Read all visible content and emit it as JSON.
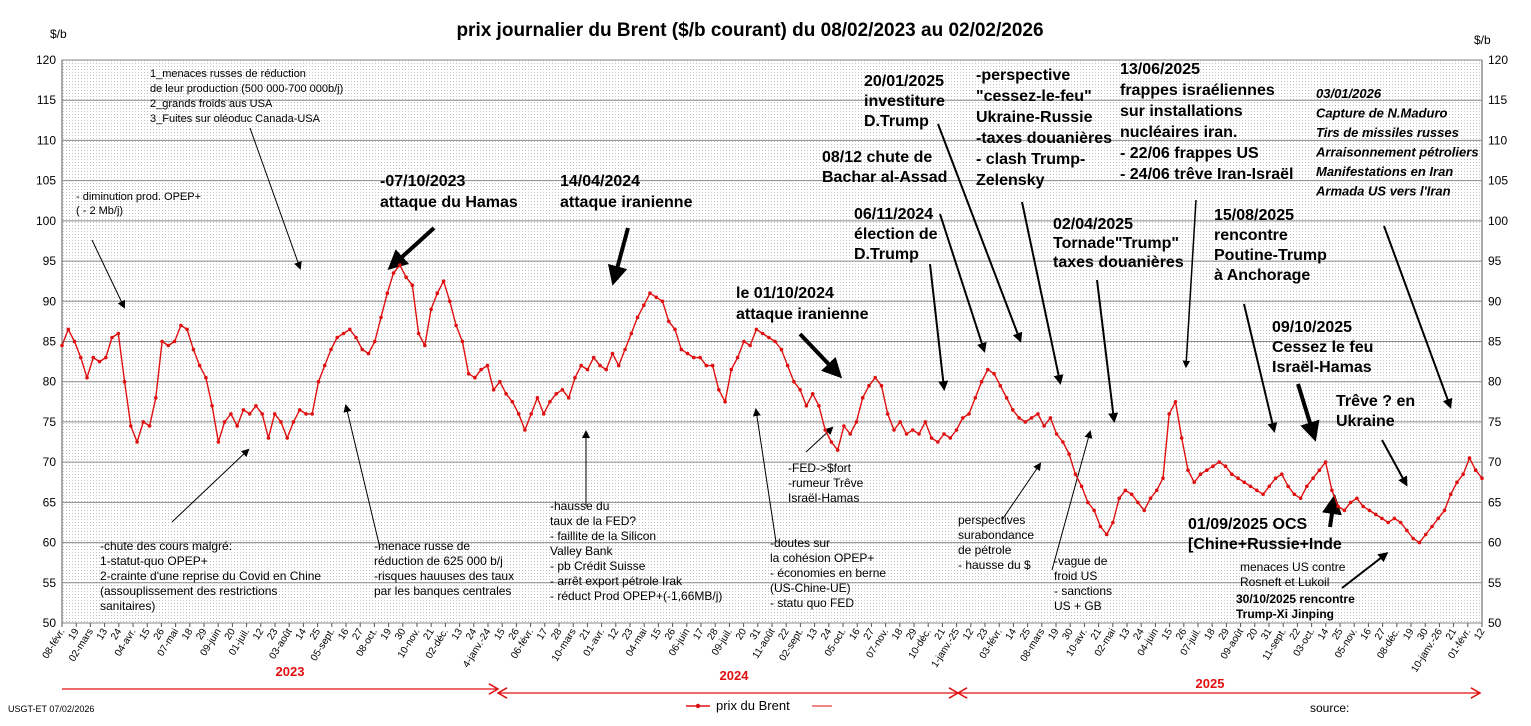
{
  "chart_data": {
    "type": "line",
    "title": "prix  journalier du  Brent ($/b courant) du 08/02/2023 au  02/02/2026",
    "ylabel": "$/b",
    "ylim": [
      50,
      120
    ],
    "yticks": [
      50,
      55,
      60,
      65,
      70,
      75,
      80,
      85,
      90,
      95,
      100,
      105,
      110,
      115,
      120
    ],
    "xtick_labels": [
      "08-févr.",
      "19",
      "02-mars",
      "13",
      "24",
      "04-avr.",
      "15",
      "26",
      "07-mai",
      "18",
      "29",
      "09-juin",
      "20",
      "01-juil.",
      "12",
      "23",
      "03-août",
      "14",
      "25",
      "05-sept.",
      "16",
      "27",
      "08-oct.",
      "19",
      "30",
      "10-nov.",
      "21",
      "02-déc.",
      "13",
      "24",
      "4-janv.-24",
      "15",
      "26",
      "06-févr.",
      "17",
      "28",
      "10-mars",
      "21",
      "01-avr.",
      "12",
      "23",
      "04-mai",
      "15",
      "26",
      "06-juin",
      "17",
      "28",
      "09-juil.",
      "20",
      "31",
      "11-août",
      "22",
      "02-sept.",
      "13",
      "24",
      "05-oct.",
      "16",
      "27",
      "07-nov.",
      "18",
      "29",
      "10-déc.",
      "21",
      "1-janv.-25",
      "12",
      "23",
      "03-févr.",
      "14",
      "25",
      "08-mars",
      "19",
      "30",
      "10-avr.",
      "21",
      "02-mai",
      "13",
      "24",
      "04-juin",
      "15",
      "26",
      "07-juil.",
      "18",
      "29",
      "09-août",
      "20",
      "31",
      "11-sept.",
      "22",
      "03-oct.",
      "14",
      "25",
      "05-nov.",
      "16",
      "27",
      "08-déc.",
      "19",
      "30",
      "10-janv.-26",
      "21",
      "01-févr.",
      "12"
    ],
    "years": [
      "2023",
      "2024",
      "2025"
    ],
    "series": [
      {
        "name": "prix du Brent",
        "color": "#e01010",
        "values": [
          84.5,
          86.5,
          85.0,
          83.0,
          80.5,
          83.0,
          82.5,
          83.0,
          85.5,
          86.0,
          80.0,
          74.5,
          72.5,
          75.0,
          74.5,
          78.0,
          85.0,
          84.5,
          85.0,
          87.0,
          86.5,
          84.0,
          82.0,
          80.5,
          77.0,
          72.5,
          75.0,
          76.0,
          74.5,
          76.5,
          76.0,
          77.0,
          76.0,
          73.0,
          76.0,
          75.0,
          73.0,
          75.0,
          76.5,
          76.0,
          76.0,
          80.0,
          82.0,
          84.0,
          85.5,
          86.0,
          86.5,
          85.5,
          84.0,
          83.5,
          85.0,
          88.0,
          91.0,
          93.5,
          94.5,
          93.0,
          92.0,
          86.0,
          84.5,
          89.0,
          91.0,
          92.5,
          90.0,
          87.0,
          85.0,
          81.0,
          80.5,
          81.5,
          82.0,
          79.0,
          80.0,
          78.5,
          77.5,
          76.0,
          74.0,
          76.0,
          78.0,
          76.0,
          77.5,
          78.5,
          79.0,
          78.0,
          80.5,
          82.0,
          81.5,
          83.0,
          82.0,
          81.5,
          83.5,
          82.0,
          84.0,
          86.0,
          88.0,
          89.5,
          91.0,
          90.5,
          90.0,
          87.5,
          86.5,
          84.0,
          83.5,
          83.0,
          83.0,
          82.0,
          82.0,
          79.0,
          77.5,
          81.5,
          83.0,
          85.0,
          84.5,
          86.5,
          86.0,
          85.5,
          85.0,
          84.0,
          82.0,
          80.0,
          79.0,
          77.0,
          78.5,
          77.0,
          74.0,
          72.5,
          71.5,
          74.5,
          73.5,
          75.0,
          78.0,
          79.5,
          80.5,
          79.5,
          76.0,
          74.0,
          75.0,
          73.5,
          74.0,
          73.5,
          75.0,
          73.0,
          72.5,
          73.5,
          73.0,
          74.0,
          75.5,
          76.0,
          78.0,
          80.0,
          81.5,
          81.0,
          79.5,
          78.0,
          76.5,
          75.5,
          75.0,
          75.5,
          76.0,
          74.5,
          75.5,
          73.5,
          72.5,
          71.0,
          68.5,
          67.0,
          65.0,
          64.0,
          62.0,
          61.0,
          62.5,
          65.5,
          66.5,
          66.0,
          65.0,
          64.0,
          65.5,
          66.5,
          68.0,
          76.0,
          77.5,
          73.0,
          69.0,
          67.5,
          68.5,
          69.0,
          69.5,
          70.0,
          69.5,
          68.5,
          68.0,
          67.5,
          67.0,
          66.5,
          66.0,
          67.0,
          68.0,
          68.5,
          67.0,
          66.0,
          65.5,
          67.0,
          68.0,
          69.0,
          70.0,
          66.5,
          64.5,
          64.0,
          65.0,
          65.5,
          64.5,
          64.0,
          63.5,
          63.0,
          62.5,
          63.0,
          62.5,
          61.5,
          60.5,
          60.0,
          61.0,
          62.0,
          63.0,
          64.0,
          66.0,
          67.5,
          68.5,
          70.5,
          69.0,
          68.0
        ]
      }
    ],
    "annotations": [
      {
        "id": "a1",
        "lines": [
          "1_menaces russes de réduction",
          "de leur production (500 000-700  000b/j)",
          "2_grands froids aus USA",
          "3_Fuites sur oléoduc Canada-USA"
        ]
      },
      {
        "id": "a2",
        "lines": [
          "-  diminution prod. OPEP+",
          "( - 2 Mb/j)"
        ]
      },
      {
        "id": "a3",
        "lines": [
          "-07/10/2023",
          "attaque  du Hamas"
        ]
      },
      {
        "id": "a4",
        "lines": [
          "14/04/2024",
          "attaque iranienne"
        ]
      },
      {
        "id": "a5",
        "lines": [
          "le 01/10/2024",
          "attaque iranienne"
        ]
      },
      {
        "id": "a6",
        "lines": [
          "20/01/2025",
          "investiture",
          "D.Trump"
        ]
      },
      {
        "id": "a7",
        "lines": [
          "08/12 chute de",
          "Bachar al-Assad"
        ]
      },
      {
        "id": "a8",
        "lines": [
          "06/11/2024",
          "élection de",
          "D.Trump"
        ]
      },
      {
        "id": "a9",
        "lines": [
          "-perspective",
          "\"cessez-le-feu\"",
          "Ukraine-Russie",
          "-taxes douanières",
          "- clash Trump-",
          "Zelensky"
        ]
      },
      {
        "id": "a10",
        "lines": [
          "13/06/2025",
          "frappes  israéliennes",
          "sur installations",
          "nucléaires iran.",
          "- 22/06 frappes US",
          "- 24/06 trêve Iran-Israël"
        ]
      },
      {
        "id": "a11",
        "lines": [
          "02/04/2025",
          "Tornade\"Trump\"",
          "taxes douanières"
        ]
      },
      {
        "id": "a12",
        "lines": [
          "15/08/2025",
          "rencontre",
          "Poutine-Trump",
          "à Anchorage"
        ]
      },
      {
        "id": "a13",
        "lines": [
          "03/01/2026",
          "Capture de N.Maduro",
          "Tirs de missiles russes",
          "Arraisonnement pétroliers",
          "Manifestations en Iran",
          "Armada US vers  l'Iran"
        ]
      },
      {
        "id": "a14",
        "lines": [
          "09/10/2025",
          "Cessez le feu",
          "Israël-Hamas"
        ]
      },
      {
        "id": "a15",
        "lines": [
          "Trêve ? en",
          "Ukraine"
        ]
      },
      {
        "id": "a16",
        "lines": [
          "01/09/2025 OCS",
          "[Chine+Russie+Inde"
        ]
      },
      {
        "id": "a17",
        "lines": [
          "menaces US contre",
          "Rosneft et Lukoil"
        ]
      },
      {
        "id": "a18",
        "lines": [
          "30/10/2025  rencontre",
          "Trump-Xi Jinping"
        ]
      },
      {
        "id": "a19",
        "lines": [
          "-chute des cours malgré:",
          "1-statut-quo OPEP+",
          "2-crainte d'une reprise du Covid en Chine",
          "  (assouplissement des restrictions",
          "sanitaires)"
        ]
      },
      {
        "id": "a20",
        "lines": [
          "-menace russe de",
          "réduction de 625 000 b/j",
          "-risques hauuses des taux",
          "par les banques centrales"
        ]
      },
      {
        "id": "a21",
        "lines": [
          "-hausse du",
          "taux de la FED?",
          "- faillite de la Silicon",
          "Valley Bank",
          "- pb Crédit Suisse",
          "- arrêt export pétrole Irak",
          "- réduct Prod OPEP+(-1,66MB/j)"
        ]
      },
      {
        "id": "a22",
        "lines": [
          "-doutes sur",
          "la cohésion  OPEP+",
          "- économies en berne",
          "(US-Chine-UE)",
          "- statu quo FED"
        ]
      },
      {
        "id": "a23",
        "lines": [
          "-FED->$fort",
          "-rumeur Trêve",
          "Israël-Hamas"
        ]
      },
      {
        "id": "a24",
        "lines": [
          "perspectives",
          "surabondance",
          "de pétrole",
          "- hausse du $"
        ]
      },
      {
        "id": "a25",
        "lines": [
          "-vague de",
          "froid US",
          "- sanctions",
          "US + GB"
        ]
      }
    ],
    "legend": "prix du Brent",
    "legend_position": "bottom-center",
    "footer_left": "USGT-ET  07/02/2026",
    "footer_right": "source:"
  },
  "colors": {
    "line": "#e01010",
    "text": "#000000",
    "grid": "#999999",
    "year": "#e01010"
  }
}
